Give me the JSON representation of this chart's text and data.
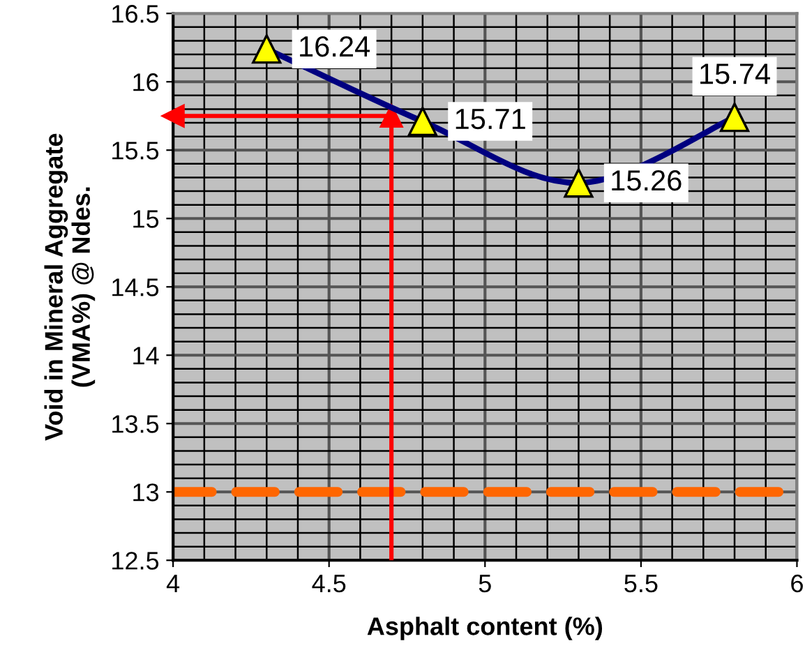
{
  "chart_data": {
    "type": "line",
    "xlabel": "Asphalt content (%)",
    "ylabel": "Void in Mineral Aggregate\n(VMA%) @ Ndes.",
    "series": [
      {
        "color": "#000080",
        "x": [
          4.3,
          4.8,
          5.3,
          5.8
        ],
        "values": [
          16.24,
          15.71,
          15.26,
          15.74
        ]
      }
    ],
    "marker": "triangle",
    "data_labels": true,
    "grid": true,
    "xlim": [
      4,
      6
    ],
    "xticks": [
      4,
      4.5,
      5,
      5.5,
      6
    ],
    "ylim": [
      12.5,
      16.5
    ],
    "yticks": [
      12.5,
      13,
      13.5,
      14,
      14.5,
      15,
      15.5,
      16,
      16.5
    ],
    "ref_lines": [
      {
        "axis": "y",
        "value": 13,
        "color": "#ff6600",
        "line_style": "dashed"
      },
      {
        "axis": "x",
        "value": 4.7,
        "color": "#ff0000",
        "line_style": "solid"
      },
      {
        "axis": "y",
        "value": 15.75,
        "color": "#ff0000",
        "line_style": "solid"
      }
    ]
  }
}
